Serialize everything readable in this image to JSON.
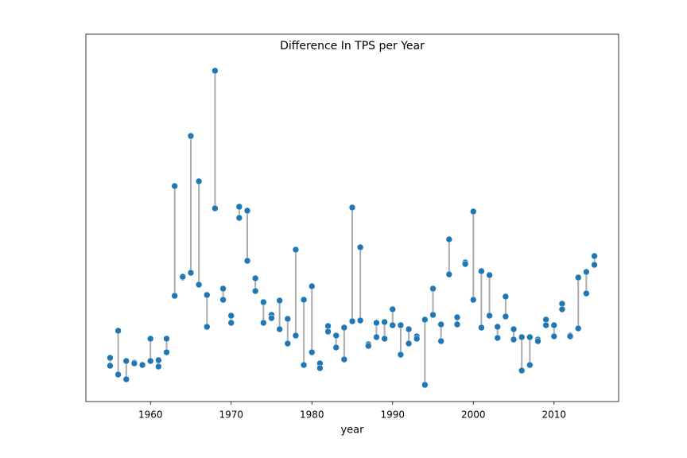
{
  "chart_data": {
    "type": "dumbbell",
    "title": "Difference In TPS per Year",
    "x_label": "year",
    "x": [
      1955,
      1956,
      1957,
      1958,
      1959,
      1960,
      1961,
      1962,
      1963,
      1964,
      1965,
      1966,
      1967,
      1968,
      1969,
      1970,
      1971,
      1972,
      1973,
      1974,
      1975,
      1976,
      1977,
      1978,
      1979,
      1980,
      1981,
      1982,
      1983,
      1984,
      1985,
      1986,
      1987,
      1988,
      1989,
      1990,
      1991,
      1992,
      1993,
      1994,
      1995,
      1996,
      1997,
      1998,
      1999,
      2000,
      2001,
      2002,
      2003,
      2004,
      2005,
      2006,
      2007,
      2008,
      2009,
      2010,
      2011,
      2012,
      2013,
      2014,
      2015
    ],
    "series": [
      {
        "color": "#1f77b4",
        "values": [
          55,
          89,
          51,
          49,
          46,
          79,
          52,
          79,
          271,
          156,
          334,
          277,
          134,
          416,
          142,
          108,
          245,
          240,
          155,
          125,
          109,
          127,
          104,
          191,
          128,
          145,
          48,
          95,
          83,
          93,
          244,
          194,
          72,
          99,
          100,
          116,
          96,
          91,
          82,
          103,
          142,
          97,
          204,
          106,
          175,
          239,
          164,
          159,
          94,
          132,
          91,
          81,
          81,
          78,
          103,
          96,
          123,
          83,
          156,
          163,
          183
        ]
      },
      {
        "color": "#1f77b4",
        "values": [
          45,
          34,
          28,
          48,
          46,
          51,
          44,
          62,
          133,
          157,
          162,
          147,
          94,
          243,
          128,
          99,
          231,
          177,
          139,
          99,
          105,
          91,
          73,
          83,
          46,
          62,
          42,
          88,
          68,
          53,
          101,
          102,
          70,
          81,
          79,
          96,
          59,
          73,
          79,
          21,
          109,
          76,
          160,
          97,
          173,
          128,
          93,
          108,
          80,
          107,
          78,
          39,
          46,
          76,
          96,
          82,
          116,
          82,
          92,
          136,
          172
        ]
      }
    ],
    "line_color": "#aaaaaa",
    "xlim": [
      1952,
      2018
    ],
    "xticks": [
      1960,
      1970,
      1980,
      1990,
      2000,
      2010
    ],
    "ylim": [
      0,
      462
    ]
  }
}
